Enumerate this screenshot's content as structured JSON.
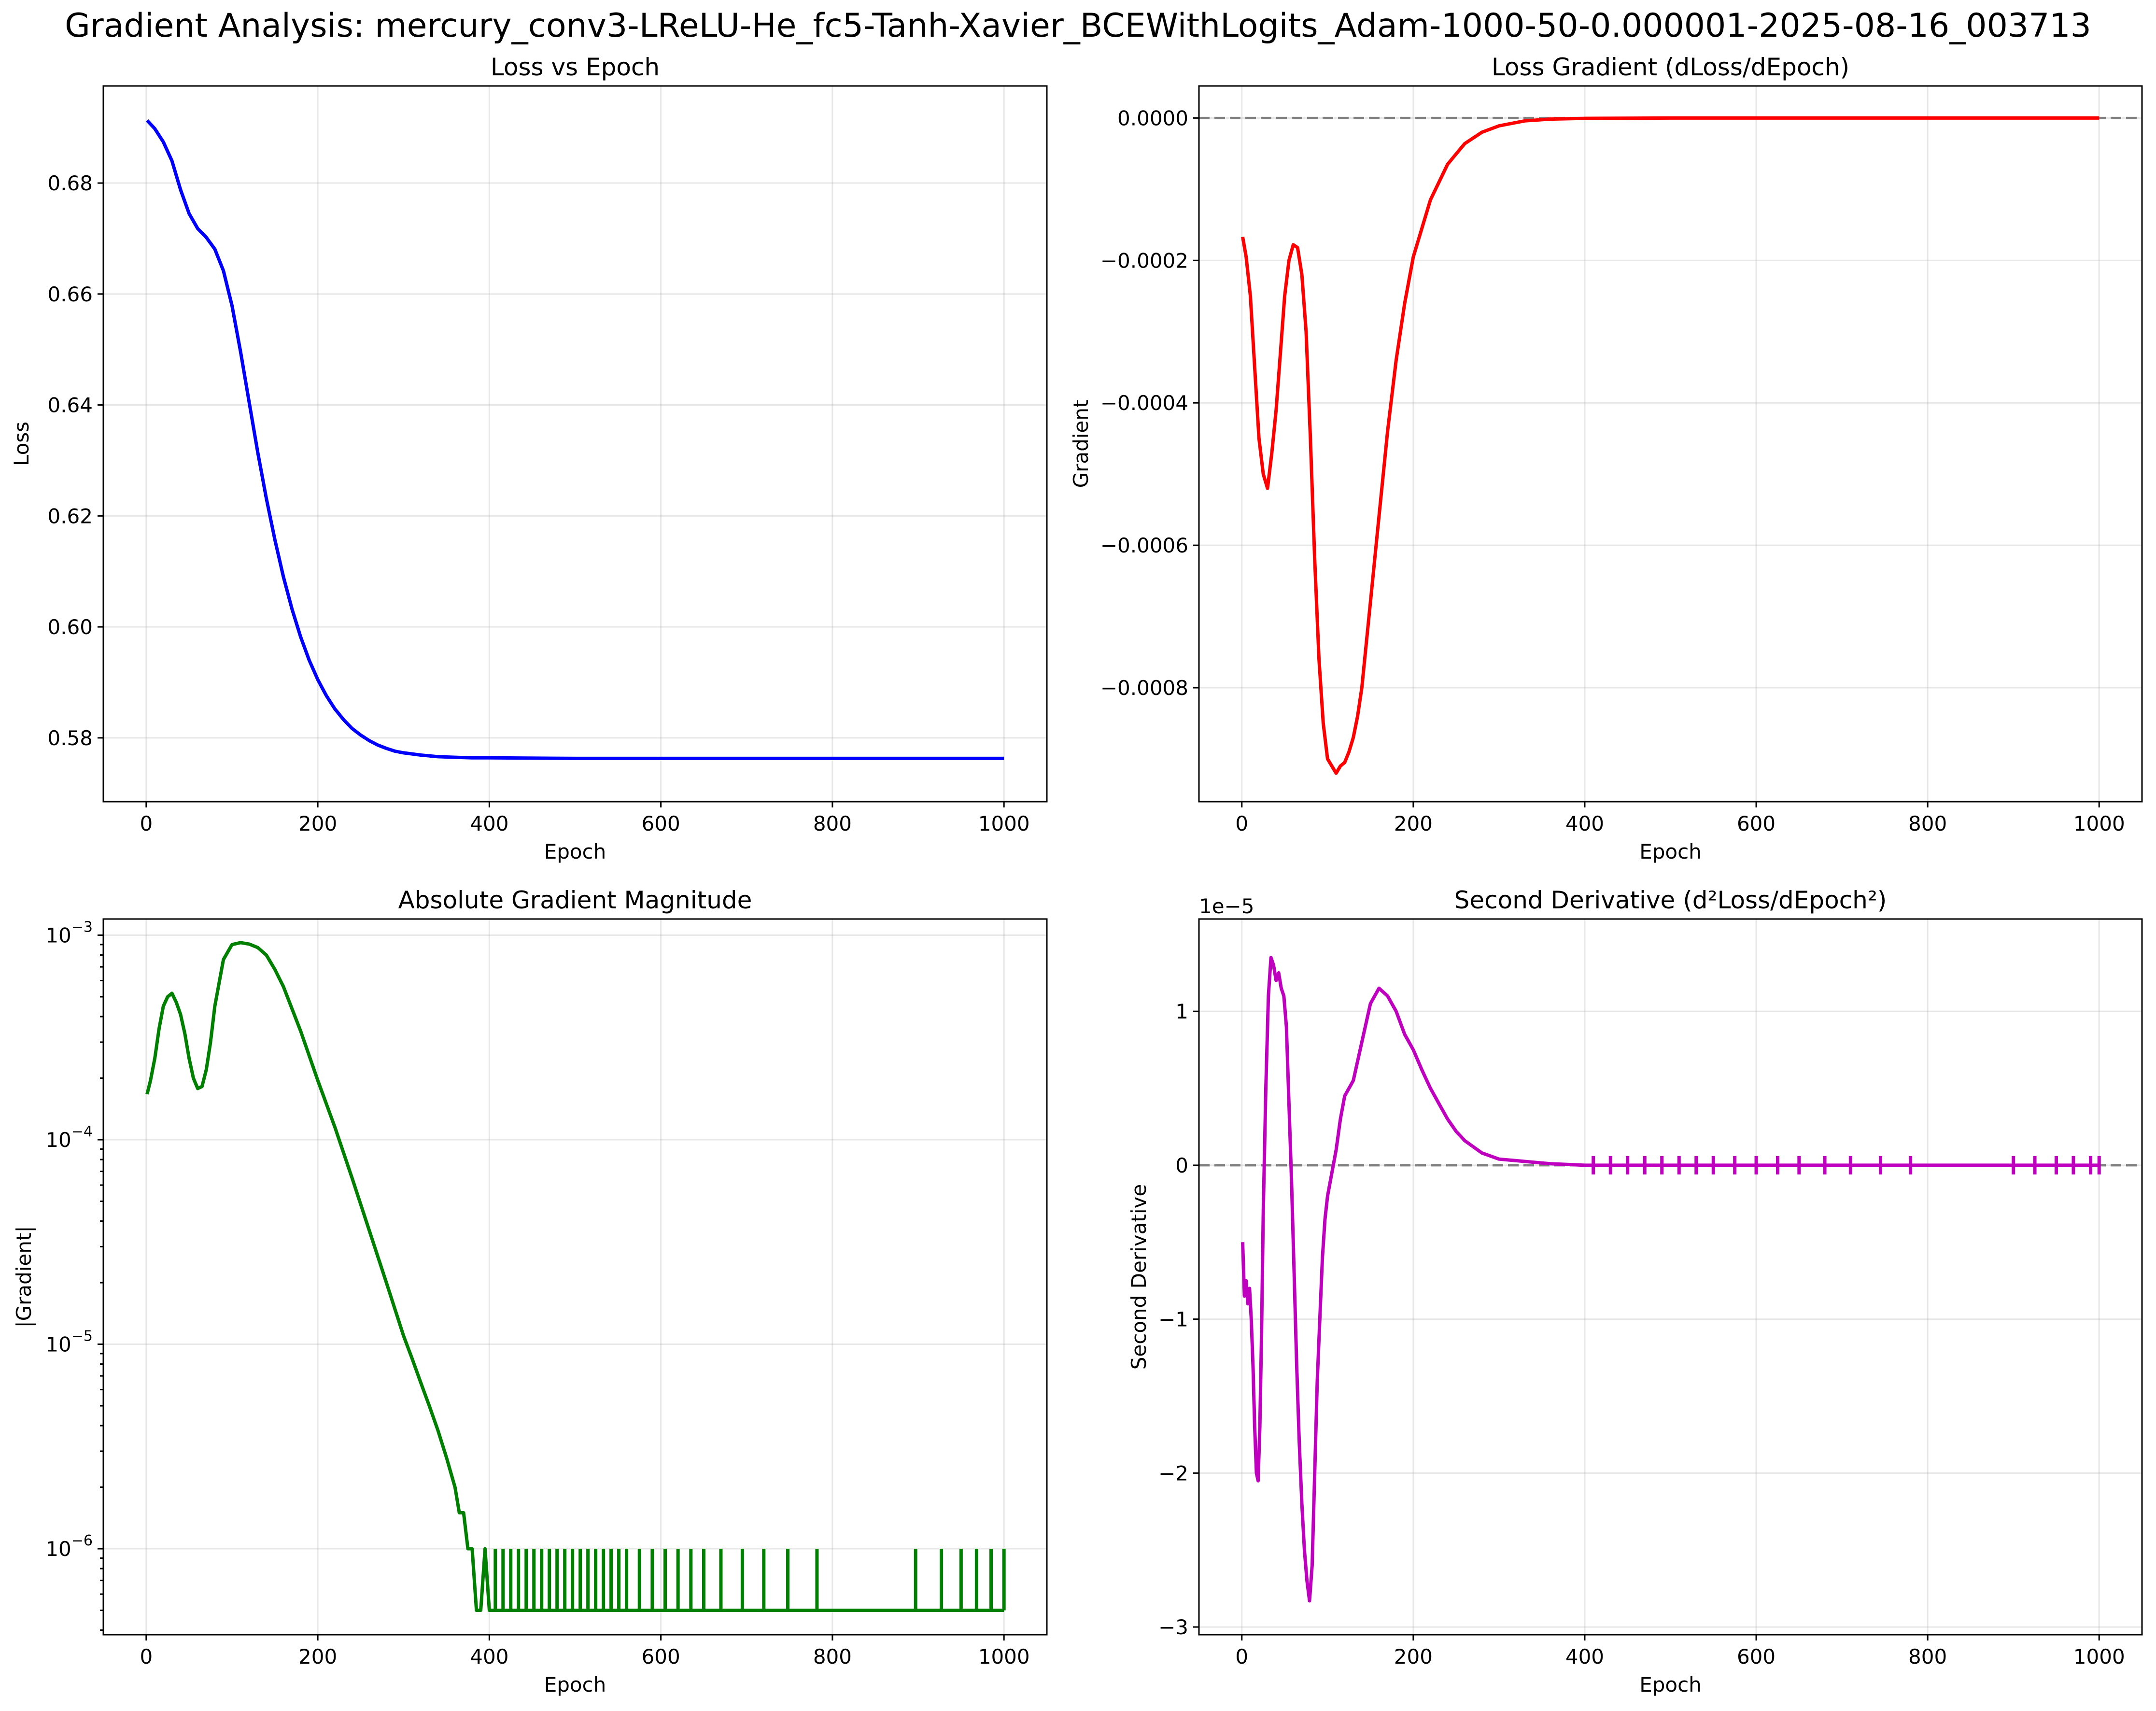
{
  "figure_title": "Gradient Analysis: mercury_conv3-LReLU-He_fc5-Tanh-Xavier_BCEWithLogits_Adam-1000-50-0.000001-2025-08-16_003713",
  "chart_data": [
    {
      "type": "line",
      "title": "Loss vs Epoch",
      "xlabel": "Epoch",
      "ylabel": "Loss",
      "xlim": [
        -50,
        1050
      ],
      "ylim": [
        0.5685,
        0.6975
      ],
      "xticks": [
        0,
        200,
        400,
        600,
        800,
        1000
      ],
      "xtick_labels": [
        "0",
        "200",
        "400",
        "600",
        "800",
        "1000"
      ],
      "yticks": [
        0.58,
        0.6,
        0.62,
        0.64,
        0.66,
        0.68
      ],
      "ytick_labels": [
        "0.58",
        "0.60",
        "0.62",
        "0.64",
        "0.66",
        "0.68"
      ],
      "grid": true,
      "color": "#0000ff",
      "series": [
        {
          "x": [
            1,
            10,
            20,
            30,
            40,
            50,
            60,
            70,
            80,
            90,
            100,
            110,
            120,
            130,
            140,
            150,
            160,
            170,
            180,
            190,
            200,
            210,
            220,
            230,
            240,
            250,
            260,
            270,
            280,
            290,
            300,
            320,
            340,
            360,
            380,
            400,
            500,
            600,
            700,
            800,
            900,
            1000
          ],
          "y": [
            0.6913,
            0.6898,
            0.6874,
            0.684,
            0.6788,
            0.6745,
            0.6718,
            0.6702,
            0.6681,
            0.6642,
            0.6579,
            0.6496,
            0.6405,
            0.6315,
            0.6232,
            0.6157,
            0.609,
            0.6032,
            0.5982,
            0.594,
            0.5905,
            0.5876,
            0.5852,
            0.5833,
            0.5817,
            0.5805,
            0.5795,
            0.5787,
            0.5781,
            0.5776,
            0.5773,
            0.5769,
            0.5766,
            0.5765,
            0.5764,
            0.5764,
            0.5763,
            0.5763,
            0.5763,
            0.5763,
            0.5763,
            0.5763
          ]
        }
      ]
    },
    {
      "type": "line",
      "title": "Loss Gradient (dLoss/dEpoch)",
      "xlabel": "Epoch",
      "ylabel": "Gradient",
      "xlim": [
        -50,
        1050
      ],
      "ylim": [
        -0.00096,
        4.5e-05
      ],
      "xticks": [
        0,
        200,
        400,
        600,
        800,
        1000
      ],
      "xtick_labels": [
        "0",
        "200",
        "400",
        "600",
        "800",
        "1000"
      ],
      "yticks": [
        -0.0008,
        -0.0006,
        -0.0004,
        -0.0002,
        0.0
      ],
      "ytick_labels": [
        "−0.0008",
        "−0.0006",
        "−0.0004",
        "−0.0002",
        "0.0000"
      ],
      "grid": true,
      "color": "#ff0000",
      "reference_line": {
        "y": 0,
        "style": "dashed",
        "color": "#808080"
      },
      "series": [
        {
          "x": [
            1,
            5,
            10,
            15,
            20,
            25,
            30,
            35,
            40,
            45,
            50,
            55,
            60,
            65,
            70,
            75,
            80,
            85,
            90,
            95,
            100,
            105,
            110,
            115,
            120,
            125,
            130,
            135,
            140,
            150,
            160,
            170,
            180,
            190,
            200,
            220,
            240,
            260,
            280,
            300,
            330,
            360,
            400,
            500,
            600,
            700,
            800,
            900,
            1000
          ],
          "y": [
            -0.000167,
            -0.000195,
            -0.00025,
            -0.00035,
            -0.00045,
            -0.0005,
            -0.00052,
            -0.00047,
            -0.00041,
            -0.00033,
            -0.00025,
            -0.0002,
            -0.000178,
            -0.000182,
            -0.00022,
            -0.0003,
            -0.00045,
            -0.00062,
            -0.00076,
            -0.00085,
            -0.0009,
            -0.00091,
            -0.00092,
            -0.00091,
            -0.000905,
            -0.00089,
            -0.00087,
            -0.00084,
            -0.0008,
            -0.00068,
            -0.00056,
            -0.00044,
            -0.00034,
            -0.00026,
            -0.000195,
            -0.000115,
            -6.5e-05,
            -3.6e-05,
            -2e-05,
            -1.1e-05,
            -4e-06,
            -1.5e-06,
            -5e-07,
            0.0,
            0.0,
            0.0,
            0.0,
            0.0,
            0.0
          ]
        }
      ]
    },
    {
      "type": "line",
      "title": "Absolute Gradient Magnitude",
      "xlabel": "Epoch",
      "ylabel": "|Gradient|",
      "yscale": "log",
      "xlim": [
        -50,
        1050
      ],
      "ylim": [
        3.8e-07,
        0.0012
      ],
      "xticks": [
        0,
        200,
        400,
        600,
        800,
        1000
      ],
      "xtick_labels": [
        "0",
        "200",
        "400",
        "600",
        "800",
        "1000"
      ],
      "yticks": [
        1e-06,
        1e-05,
        0.0001,
        0.001
      ],
      "ytick_labels": [
        {
          "base": "10",
          "exp": "−6"
        },
        {
          "base": "10",
          "exp": "−5"
        },
        {
          "base": "10",
          "exp": "−4"
        },
        {
          "base": "10",
          "exp": "−3"
        }
      ],
      "grid": true,
      "color": "#008000",
      "series": [
        {
          "x": [
            1,
            5,
            10,
            15,
            20,
            25,
            30,
            35,
            40,
            45,
            50,
            55,
            60,
            65,
            70,
            75,
            80,
            90,
            100,
            110,
            120,
            130,
            140,
            150,
            160,
            180,
            200,
            220,
            240,
            260,
            280,
            300,
            310,
            320,
            330,
            340,
            350,
            360,
            365,
            370,
            375,
            380,
            385,
            390,
            395,
            400,
            410,
            1000
          ],
          "y": [
            0.000167,
            0.000195,
            0.00025,
            0.00035,
            0.00045,
            0.0005,
            0.00052,
            0.00047,
            0.00041,
            0.00033,
            0.00025,
            0.0002,
            0.000178,
            0.000182,
            0.00022,
            0.0003,
            0.00045,
            0.00076,
            0.0009,
            0.00092,
            0.000905,
            0.00087,
            0.0008,
            0.00068,
            0.00056,
            0.00034,
            0.000195,
            0.000115,
            6.5e-05,
            3.6e-05,
            2e-05,
            1.1e-05,
            8.5e-06,
            6.5e-06,
            5e-06,
            3.8e-06,
            2.8e-06,
            2e-06,
            1.5e-06,
            1.5e-06,
            1e-06,
            1e-06,
            5e-07,
            5e-07,
            1e-06,
            5e-07,
            5e-07,
            5e-07
          ]
        }
      ],
      "spike_epochs": [
        407,
        416,
        425,
        434,
        443,
        452,
        461,
        470,
        479,
        488,
        497,
        506,
        515,
        524,
        533,
        542,
        551,
        560,
        575,
        590,
        605,
        620,
        635,
        650,
        670,
        695,
        720,
        748,
        782,
        897,
        927,
        950,
        968,
        985,
        1000
      ],
      "spike_value": 1e-06
    },
    {
      "type": "line",
      "title": "Second Derivative (d²Loss/dEpoch²)",
      "xlabel": "Epoch",
      "ylabel": "Second Derivative",
      "y_scale_note": "1e−5",
      "y_units": "1e-5",
      "xlim": [
        -50,
        1050
      ],
      "ylim": [
        -3.05,
        1.6
      ],
      "xticks": [
        0,
        200,
        400,
        600,
        800,
        1000
      ],
      "xtick_labels": [
        "0",
        "200",
        "400",
        "600",
        "800",
        "1000"
      ],
      "yticks": [
        -3,
        -2,
        -1,
        0,
        1
      ],
      "ytick_labels": [
        "−3",
        "−2",
        "−1",
        "0",
        "1"
      ],
      "grid": true,
      "color": "#bf00bf",
      "reference_line": {
        "y": 0,
        "style": "dashed",
        "color": "#808080"
      },
      "series": [
        {
          "x": [
            1,
            3,
            5,
            7,
            9,
            11,
            13,
            15,
            17,
            19,
            21,
            23,
            25,
            28,
            31,
            34,
            37,
            40,
            43,
            46,
            49,
            52,
            55,
            58,
            61,
            64,
            67,
            70,
            73,
            76,
            79,
            82,
            85,
            88,
            91,
            94,
            97,
            100,
            105,
            110,
            115,
            120,
            130,
            140,
            150,
            160,
            170,
            180,
            190,
            200,
            210,
            220,
            230,
            240,
            250,
            260,
            270,
            280,
            290,
            300,
            320,
            340,
            360,
            380,
            400,
            450,
            500,
            600,
            700,
            800,
            900,
            1000
          ],
          "y": [
            -0.5,
            -0.85,
            -0.75,
            -0.9,
            -0.8,
            -1.0,
            -1.3,
            -1.7,
            -2.0,
            -2.05,
            -1.7,
            -1.1,
            -0.3,
            0.5,
            1.1,
            1.35,
            1.3,
            1.2,
            1.25,
            1.15,
            1.1,
            0.9,
            0.4,
            -0.1,
            -0.7,
            -1.3,
            -1.8,
            -2.2,
            -2.5,
            -2.7,
            -2.83,
            -2.6,
            -2.0,
            -1.4,
            -1.0,
            -0.6,
            -0.35,
            -0.2,
            -0.05,
            0.1,
            0.3,
            0.45,
            0.55,
            0.8,
            1.05,
            1.15,
            1.1,
            1.0,
            0.85,
            0.75,
            0.62,
            0.5,
            0.4,
            0.3,
            0.22,
            0.16,
            0.12,
            0.08,
            0.06,
            0.04,
            0.03,
            0.02,
            0.01,
            0.005,
            0.0,
            0.0,
            0.0,
            0.0,
            0.0,
            0.0,
            0.0,
            0.0
          ]
        }
      ],
      "spike_epochs": [
        410,
        430,
        450,
        470,
        490,
        510,
        530,
        550,
        575,
        600,
        625,
        650,
        680,
        710,
        745,
        780,
        900,
        925,
        950,
        970,
        990,
        1000
      ],
      "spike_amplitude": 0.06
    }
  ]
}
